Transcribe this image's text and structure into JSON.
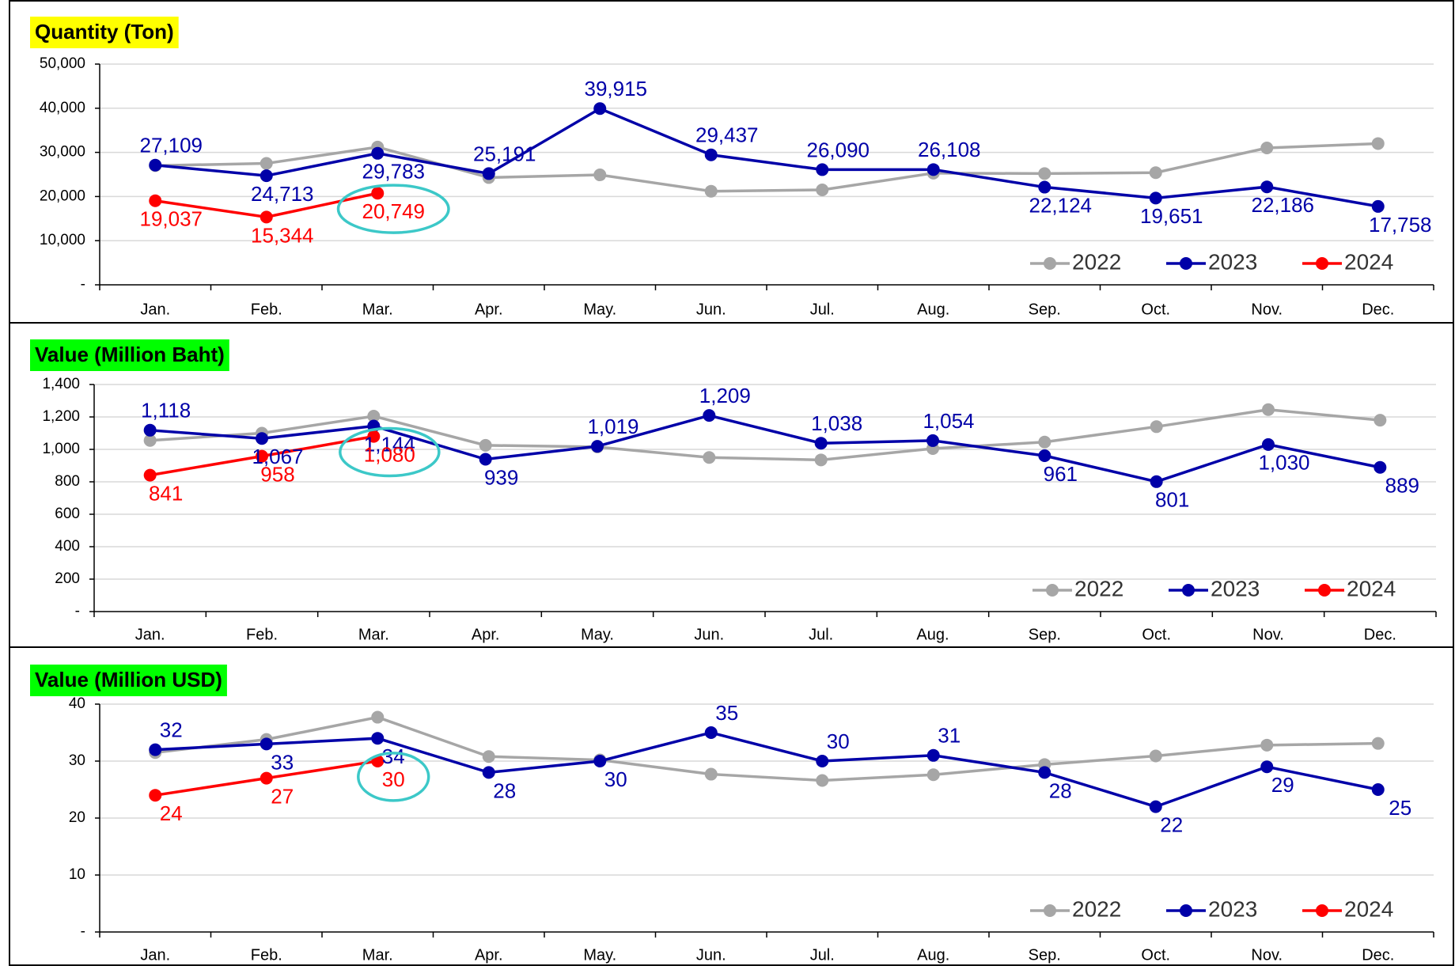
{
  "chart_data": [
    {
      "type": "line",
      "title": "Quantity (Ton)",
      "title_background": "#ffff00",
      "categories": [
        "Jan.",
        "Feb.",
        "Mar.",
        "Apr.",
        "May.",
        "Jun.",
        "Jul.",
        "Aug.",
        "Sep.",
        "Oct.",
        "Nov.",
        "Dec."
      ],
      "series": [
        {
          "name": "2022",
          "color": "#a6a6a6",
          "data_labels": false,
          "values": [
            27000,
            27500,
            31200,
            24300,
            24900,
            21200,
            21500,
            25300,
            25200,
            25400,
            31000,
            32000
          ]
        },
        {
          "name": "2023",
          "color": "#0000a8",
          "data_labels": true,
          "values": [
            27109,
            24713,
            29783,
            25191,
            39915,
            29437,
            26090,
            26108,
            22124,
            19651,
            22186,
            17758
          ],
          "value_labels": [
            "27,109",
            "24,713",
            "29,783",
            "25,191",
            "39,915",
            "29,437",
            "26,090",
            "26,108",
            "22,124",
            "19,651",
            "22,186",
            "17,758"
          ]
        },
        {
          "name": "2024",
          "color": "#ff0000",
          "data_labels": true,
          "values": [
            19037,
            15344,
            20749,
            null,
            null,
            null,
            null,
            null,
            null,
            null,
            null,
            null
          ],
          "value_labels": [
            "19,037",
            "15,344",
            "20,749",
            null,
            null,
            null,
            null,
            null,
            null,
            null,
            null,
            null
          ]
        }
      ],
      "ylim": [
        0,
        50000
      ],
      "yticks": [
        {
          "value": 0,
          "label": "-"
        },
        {
          "value": 10000,
          "label": "10,000"
        },
        {
          "value": 20000,
          "label": "20,000"
        },
        {
          "value": 30000,
          "label": "30,000"
        },
        {
          "value": 40000,
          "label": "40,000"
        },
        {
          "value": 50000,
          "label": "50,000"
        }
      ],
      "grid": true,
      "legend": "lower right"
    },
    {
      "type": "line",
      "title": "Value (Million Baht)",
      "title_background": "#00ff00",
      "categories": [
        "Jan.",
        "Feb.",
        "Mar.",
        "Apr.",
        "May.",
        "Jun.",
        "Jul.",
        "Aug.",
        "Sep.",
        "Oct.",
        "Nov.",
        "Dec."
      ],
      "series": [
        {
          "name": "2022",
          "color": "#a6a6a6",
          "data_labels": false,
          "values": [
            1055,
            1100,
            1205,
            1025,
            1015,
            950,
            935,
            1005,
            1045,
            1140,
            1245,
            1180
          ]
        },
        {
          "name": "2023",
          "color": "#0000a8",
          "data_labels": true,
          "values": [
            1118,
            1067,
            1144,
            939,
            1019,
            1209,
            1038,
            1054,
            961,
            801,
            1030,
            889
          ],
          "value_labels": [
            "1,118",
            "1,067",
            "1,144",
            "939",
            "1,019",
            "1,209",
            "1,038",
            "1,054",
            "961",
            "801",
            "1,030",
            "889"
          ]
        },
        {
          "name": "2024",
          "color": "#ff0000",
          "data_labels": true,
          "values": [
            841,
            958,
            1080,
            null,
            null,
            null,
            null,
            null,
            null,
            null,
            null,
            null
          ],
          "value_labels": [
            "841",
            "958",
            "1,080",
            null,
            null,
            null,
            null,
            null,
            null,
            null,
            null,
            null
          ]
        }
      ],
      "ylim": [
        0,
        1400
      ],
      "yticks": [
        {
          "value": 0,
          "label": "-"
        },
        200,
        400,
        600,
        800,
        {
          "value": 1000,
          "label": "1,000"
        },
        {
          "value": 1200,
          "label": "1,200"
        },
        {
          "value": 1400,
          "label": "1,400"
        }
      ],
      "grid": true,
      "legend": "lower right"
    },
    {
      "type": "line",
      "title": "Value (Million USD)",
      "title_background": "#00ff00",
      "categories": [
        "Jan.",
        "Feb.",
        "Mar.",
        "Apr.",
        "May.",
        "Jun.",
        "Jul.",
        "Aug.",
        "Sep.",
        "Oct.",
        "Nov.",
        "Dec."
      ],
      "series": [
        {
          "name": "2022",
          "color": "#a6a6a6",
          "data_labels": false,
          "values": [
            31.5,
            33.8,
            37.7,
            30.8,
            30.2,
            27.7,
            26.6,
            27.6,
            29.4,
            30.9,
            32.8,
            33.1
          ]
        },
        {
          "name": "2023",
          "color": "#0000a8",
          "data_labels": true,
          "values": [
            32,
            33,
            34,
            28,
            30,
            35,
            30,
            31,
            28,
            22,
            29,
            25
          ]
        },
        {
          "name": "2024",
          "color": "#ff0000",
          "data_labels": true,
          "values": [
            24,
            27,
            30,
            null,
            null,
            null,
            null,
            null,
            null,
            null,
            null,
            null
          ]
        }
      ],
      "ylim": [
        0,
        40
      ],
      "yticks": [
        {
          "value": 0,
          "label": "-"
        },
        10,
        20,
        30,
        40
      ],
      "grid": true,
      "legend": "lower right"
    }
  ]
}
